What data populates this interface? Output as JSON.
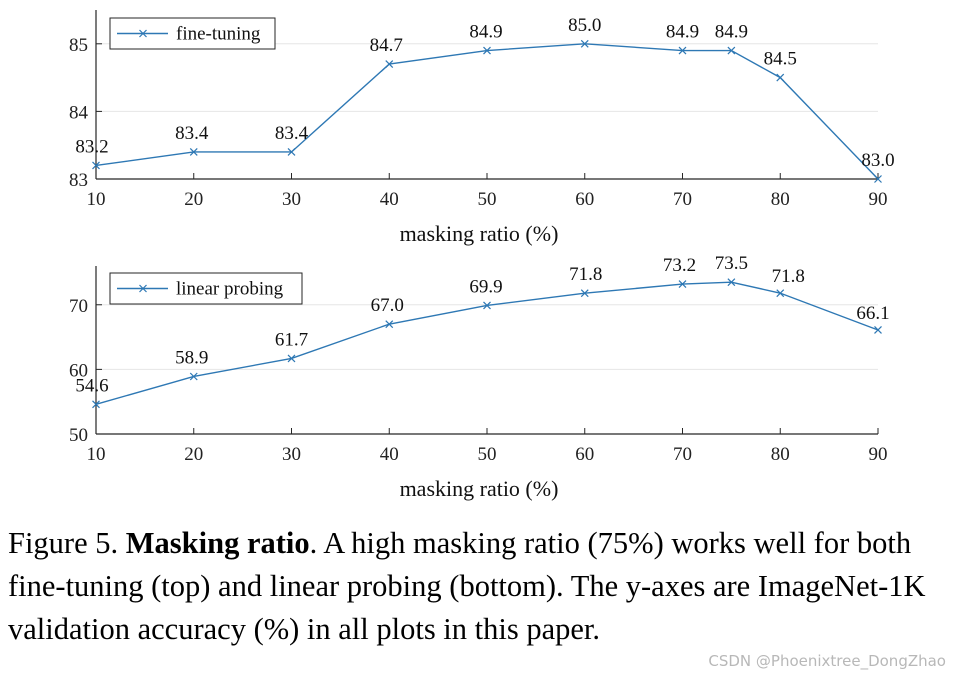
{
  "chart_data": [
    {
      "type": "line",
      "xlabel": "masking ratio (%)",
      "ylabel": "",
      "x": [
        10,
        20,
        30,
        40,
        50,
        60,
        70,
        75,
        80,
        90
      ],
      "series": [
        {
          "name": "fine-tuning",
          "values": [
            83.2,
            83.4,
            83.4,
            84.7,
            84.9,
            85.0,
            84.9,
            84.9,
            84.5,
            83.0
          ],
          "labels": [
            "83.2",
            "83.4",
            "83.4",
            "84.7",
            "84.9",
            "85.0",
            "84.9",
            "84.9",
            "84.5",
            "83.0"
          ]
        }
      ],
      "xlim": [
        10,
        90
      ],
      "ylim": [
        83,
        85.5
      ],
      "xticks": [
        10,
        20,
        30,
        40,
        50,
        60,
        70,
        80,
        90
      ],
      "yticks": [
        83,
        84,
        85
      ],
      "grid": true,
      "legend_position": "top-left",
      "color": "#2e78b4"
    },
    {
      "type": "line",
      "xlabel": "masking ratio (%)",
      "ylabel": "",
      "x": [
        10,
        20,
        30,
        40,
        50,
        60,
        70,
        75,
        80,
        90
      ],
      "series": [
        {
          "name": "linear probing",
          "values": [
            54.6,
            58.9,
            61.7,
            67.0,
            69.9,
            71.8,
            73.2,
            73.5,
            71.8,
            66.1
          ],
          "labels": [
            "54.6",
            "58.9",
            "61.7",
            "67.0",
            "69.9",
            "71.8",
            "73.2",
            "73.5",
            "71.8",
            "66.1"
          ]
        }
      ],
      "xlim": [
        10,
        90
      ],
      "ylim": [
        50,
        76
      ],
      "xticks": [
        10,
        20,
        30,
        40,
        50,
        60,
        70,
        80,
        90
      ],
      "yticks": [
        50,
        60,
        70
      ],
      "grid": true,
      "legend_position": "top-left",
      "color": "#2e78b4"
    }
  ],
  "caption": {
    "prefix": "Figure 5. ",
    "bold": "Masking ratio",
    "rest": ". A high masking ratio (75%) works well for both fine-tuning (top) and linear probing (bottom). The y-axes are ImageNet-1K validation accuracy (%) in all plots in this paper."
  },
  "watermark": "CSDN @Phoenixtree_DongZhao"
}
